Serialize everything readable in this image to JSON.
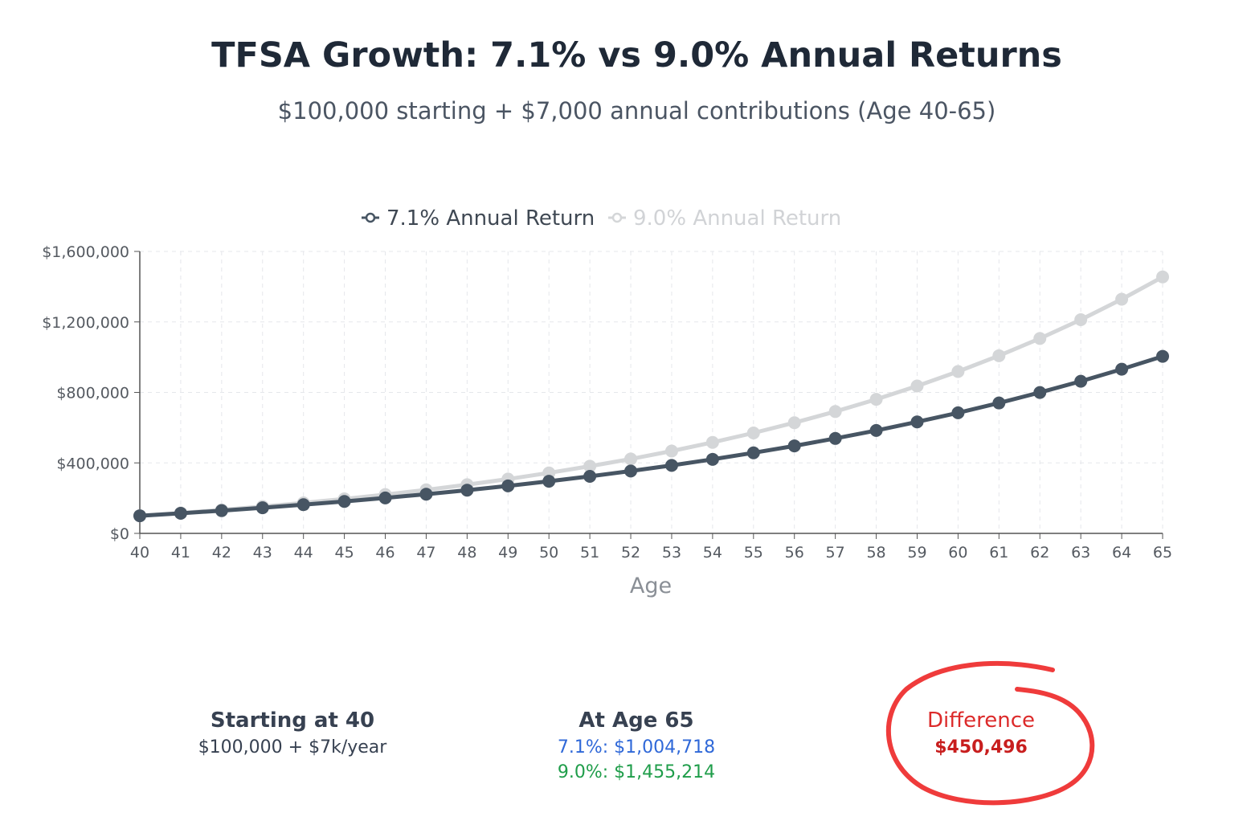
{
  "title": "TFSA Growth: 7.1% vs 9.0% Annual Returns",
  "subtitle": "$100,000 starting + $7,000 annual contributions (Age 40-65)",
  "colors": {
    "series_a": "#475563",
    "series_b": "#d4d6d8",
    "grid": "#e5e7eb",
    "axis": "#555555",
    "blue": "#2f68d8",
    "green": "#1f9d4a",
    "red": "#dc2a2a"
  },
  "chart_data": {
    "type": "line",
    "xlabel": "Age",
    "ylabel": "",
    "ylim": [
      0,
      1600000
    ],
    "yticks": [
      0,
      400000,
      800000,
      1200000,
      1600000
    ],
    "ytick_labels": [
      "$0",
      "$400,000",
      "$800,000",
      "$1,200,000",
      "$1,600,000"
    ],
    "legend_position": "top-center",
    "grid": true,
    "x": [
      40,
      41,
      42,
      43,
      44,
      45,
      46,
      47,
      48,
      49,
      50,
      51,
      52,
      53,
      54,
      55,
      56,
      57,
      58,
      59,
      60,
      61,
      62,
      63,
      64,
      65
    ],
    "series": [
      {
        "name": "7.1% Annual Return",
        "values": [
          100000,
          114100,
          129201,
          145374,
          162695,
          181247,
          201116,
          222395,
          245185,
          269593,
          295734,
          323732,
          353717,
          385831,
          420226,
          457062,
          496514,
          538767,
          584020,
          632485,
          684392,
          739984,
          799523,
          863290,
          931584,
          1004718
        ]
      },
      {
        "name": "9.0% Annual Return",
        "values": [
          100000,
          116000,
          133440,
          152450,
          173170,
          195756,
          220374,
          247207,
          276456,
          308337,
          343087,
          380965,
          422252,
          467255,
          516308,
          569775,
          628054,
          691579,
          760821,
          836295,
          918562,
          1008233,
          1105974,
          1212512,
          1328638,
          1455214
        ]
      }
    ]
  },
  "stats": {
    "start_heading": "Starting at 40",
    "start_detail": "$100,000 + $7k/year",
    "end_heading": "At Age 65",
    "end_a": "7.1%: $1,004,718",
    "end_b": "9.0%: $1,455,214",
    "diff_heading": "Difference",
    "diff_value": "$450,496"
  }
}
